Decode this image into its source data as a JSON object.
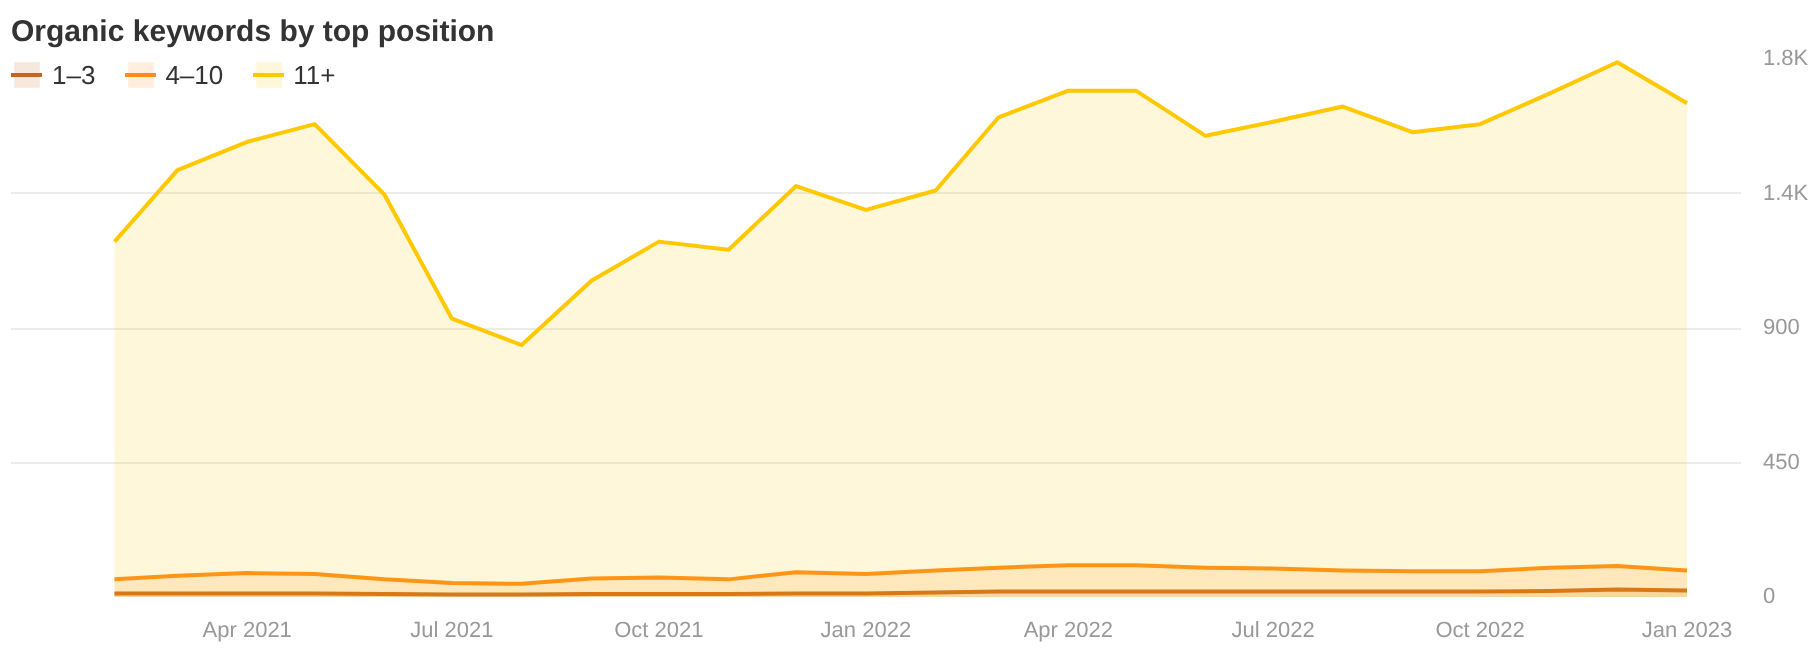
{
  "chart_data": {
    "type": "area",
    "title": "Organic keywords by top position",
    "x": [
      "2021-02-01",
      "2021-03-01",
      "2021-04-01",
      "2021-05-01",
      "2021-06-01",
      "2021-07-01",
      "2021-08-01",
      "2021-09-01",
      "2021-10-01",
      "2021-11-01",
      "2021-12-01",
      "2022-01-01",
      "2022-02-01",
      "2022-03-01",
      "2022-04-01",
      "2022-05-01",
      "2022-06-01",
      "2022-07-01",
      "2022-08-01",
      "2022-09-01",
      "2022-10-01",
      "2022-11-01",
      "2022-12-01",
      "2023-01-01"
    ],
    "series": [
      {
        "name": "1–3",
        "color": "#c8651b",
        "values": [
          12,
          12,
          12,
          12,
          10,
          8,
          8,
          10,
          10,
          10,
          12,
          12,
          15,
          18,
          18,
          18,
          18,
          18,
          18,
          18,
          18,
          20,
          25,
          22
        ]
      },
      {
        "name": "4–10",
        "color": "#ff8c1a",
        "values": [
          59,
          71,
          80,
          77,
          59,
          47,
          44,
          62,
          65,
          59,
          83,
          77,
          89,
          98,
          106,
          106,
          98,
          95,
          89,
          86,
          86,
          98,
          104,
          89
        ]
      },
      {
        "name": "11+",
        "color": "#ffc800",
        "values": [
          1189,
          1428,
          1523,
          1582,
          1346,
          931,
          843,
          1058,
          1189,
          1162,
          1375,
          1295,
          1360,
          1605,
          1694,
          1694,
          1543,
          1590,
          1641,
          1555,
          1582,
          1685,
          1789,
          1652
        ]
      }
    ],
    "xlim": [
      "2020-12-17",
      "2023-01-25"
    ],
    "xticks": [
      {
        "value": "2021-04-01",
        "label": "Apr 2021"
      },
      {
        "value": "2021-07-01",
        "label": "Jul 2021"
      },
      {
        "value": "2021-10-01",
        "label": "Oct 2021"
      },
      {
        "value": "2022-01-01",
        "label": "Jan 2022"
      },
      {
        "value": "2022-04-01",
        "label": "Apr 2022"
      },
      {
        "value": "2022-07-01",
        "label": "Jul 2022"
      },
      {
        "value": "2022-10-01",
        "label": "Oct 2022"
      },
      {
        "value": "2023-01-01",
        "label": "Jan 2023"
      }
    ],
    "ylim": [
      0,
      1800
    ],
    "yticks": [
      0,
      450,
      900,
      {
        "value": 1350,
        "label": "1.4K"
      },
      {
        "value": 1800,
        "label": "1.8K"
      }
    ],
    "grid": "y",
    "legend": "top left"
  }
}
